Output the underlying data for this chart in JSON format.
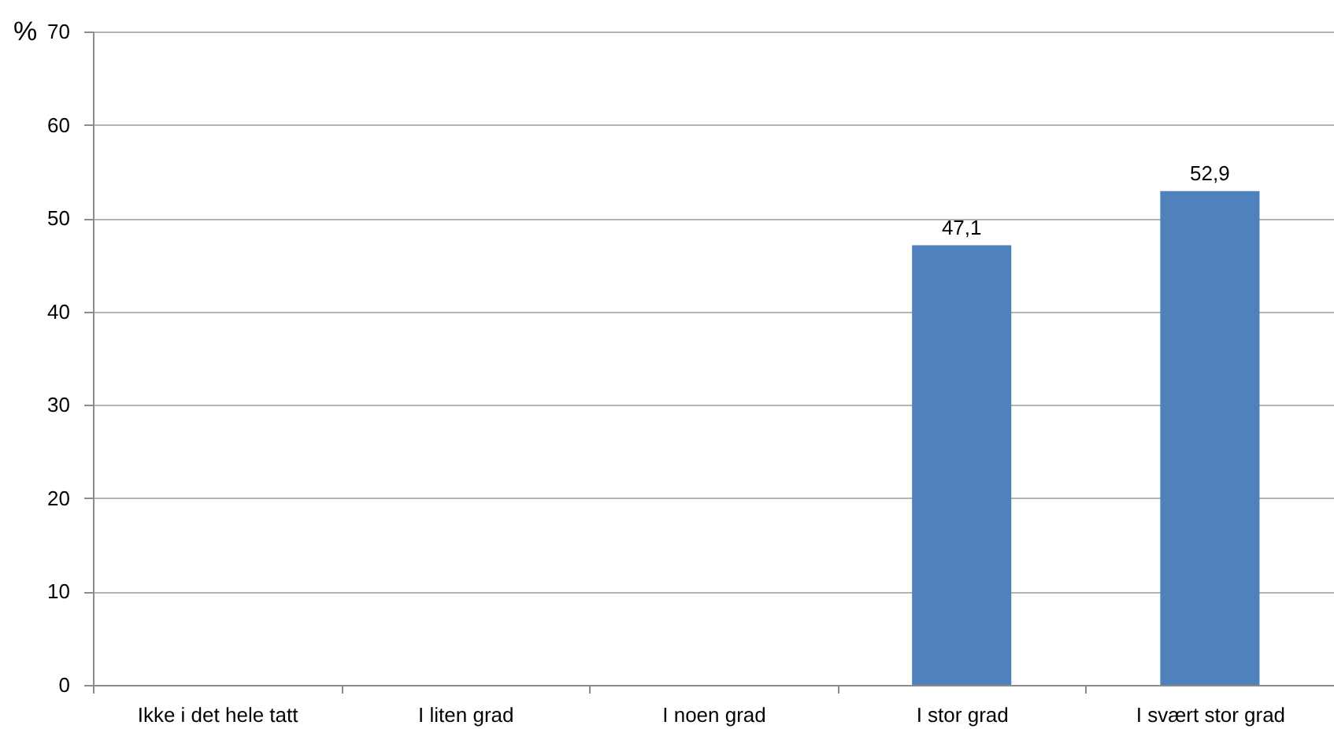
{
  "chart_data": {
    "type": "bar",
    "ylabel": "%",
    "categories": [
      "Ikke i det hele tatt",
      "I liten grad",
      "I noen grad",
      "I stor grad",
      "I svært stor grad"
    ],
    "values": [
      null,
      null,
      null,
      47.1,
      52.9
    ],
    "value_labels": [
      null,
      null,
      null,
      "47,1",
      "52,9"
    ],
    "color": "#4f81bd",
    "ylim": [
      0,
      70
    ],
    "yticks": [
      0,
      10,
      20,
      30,
      40,
      50,
      60,
      70
    ],
    "grid": "y"
  }
}
